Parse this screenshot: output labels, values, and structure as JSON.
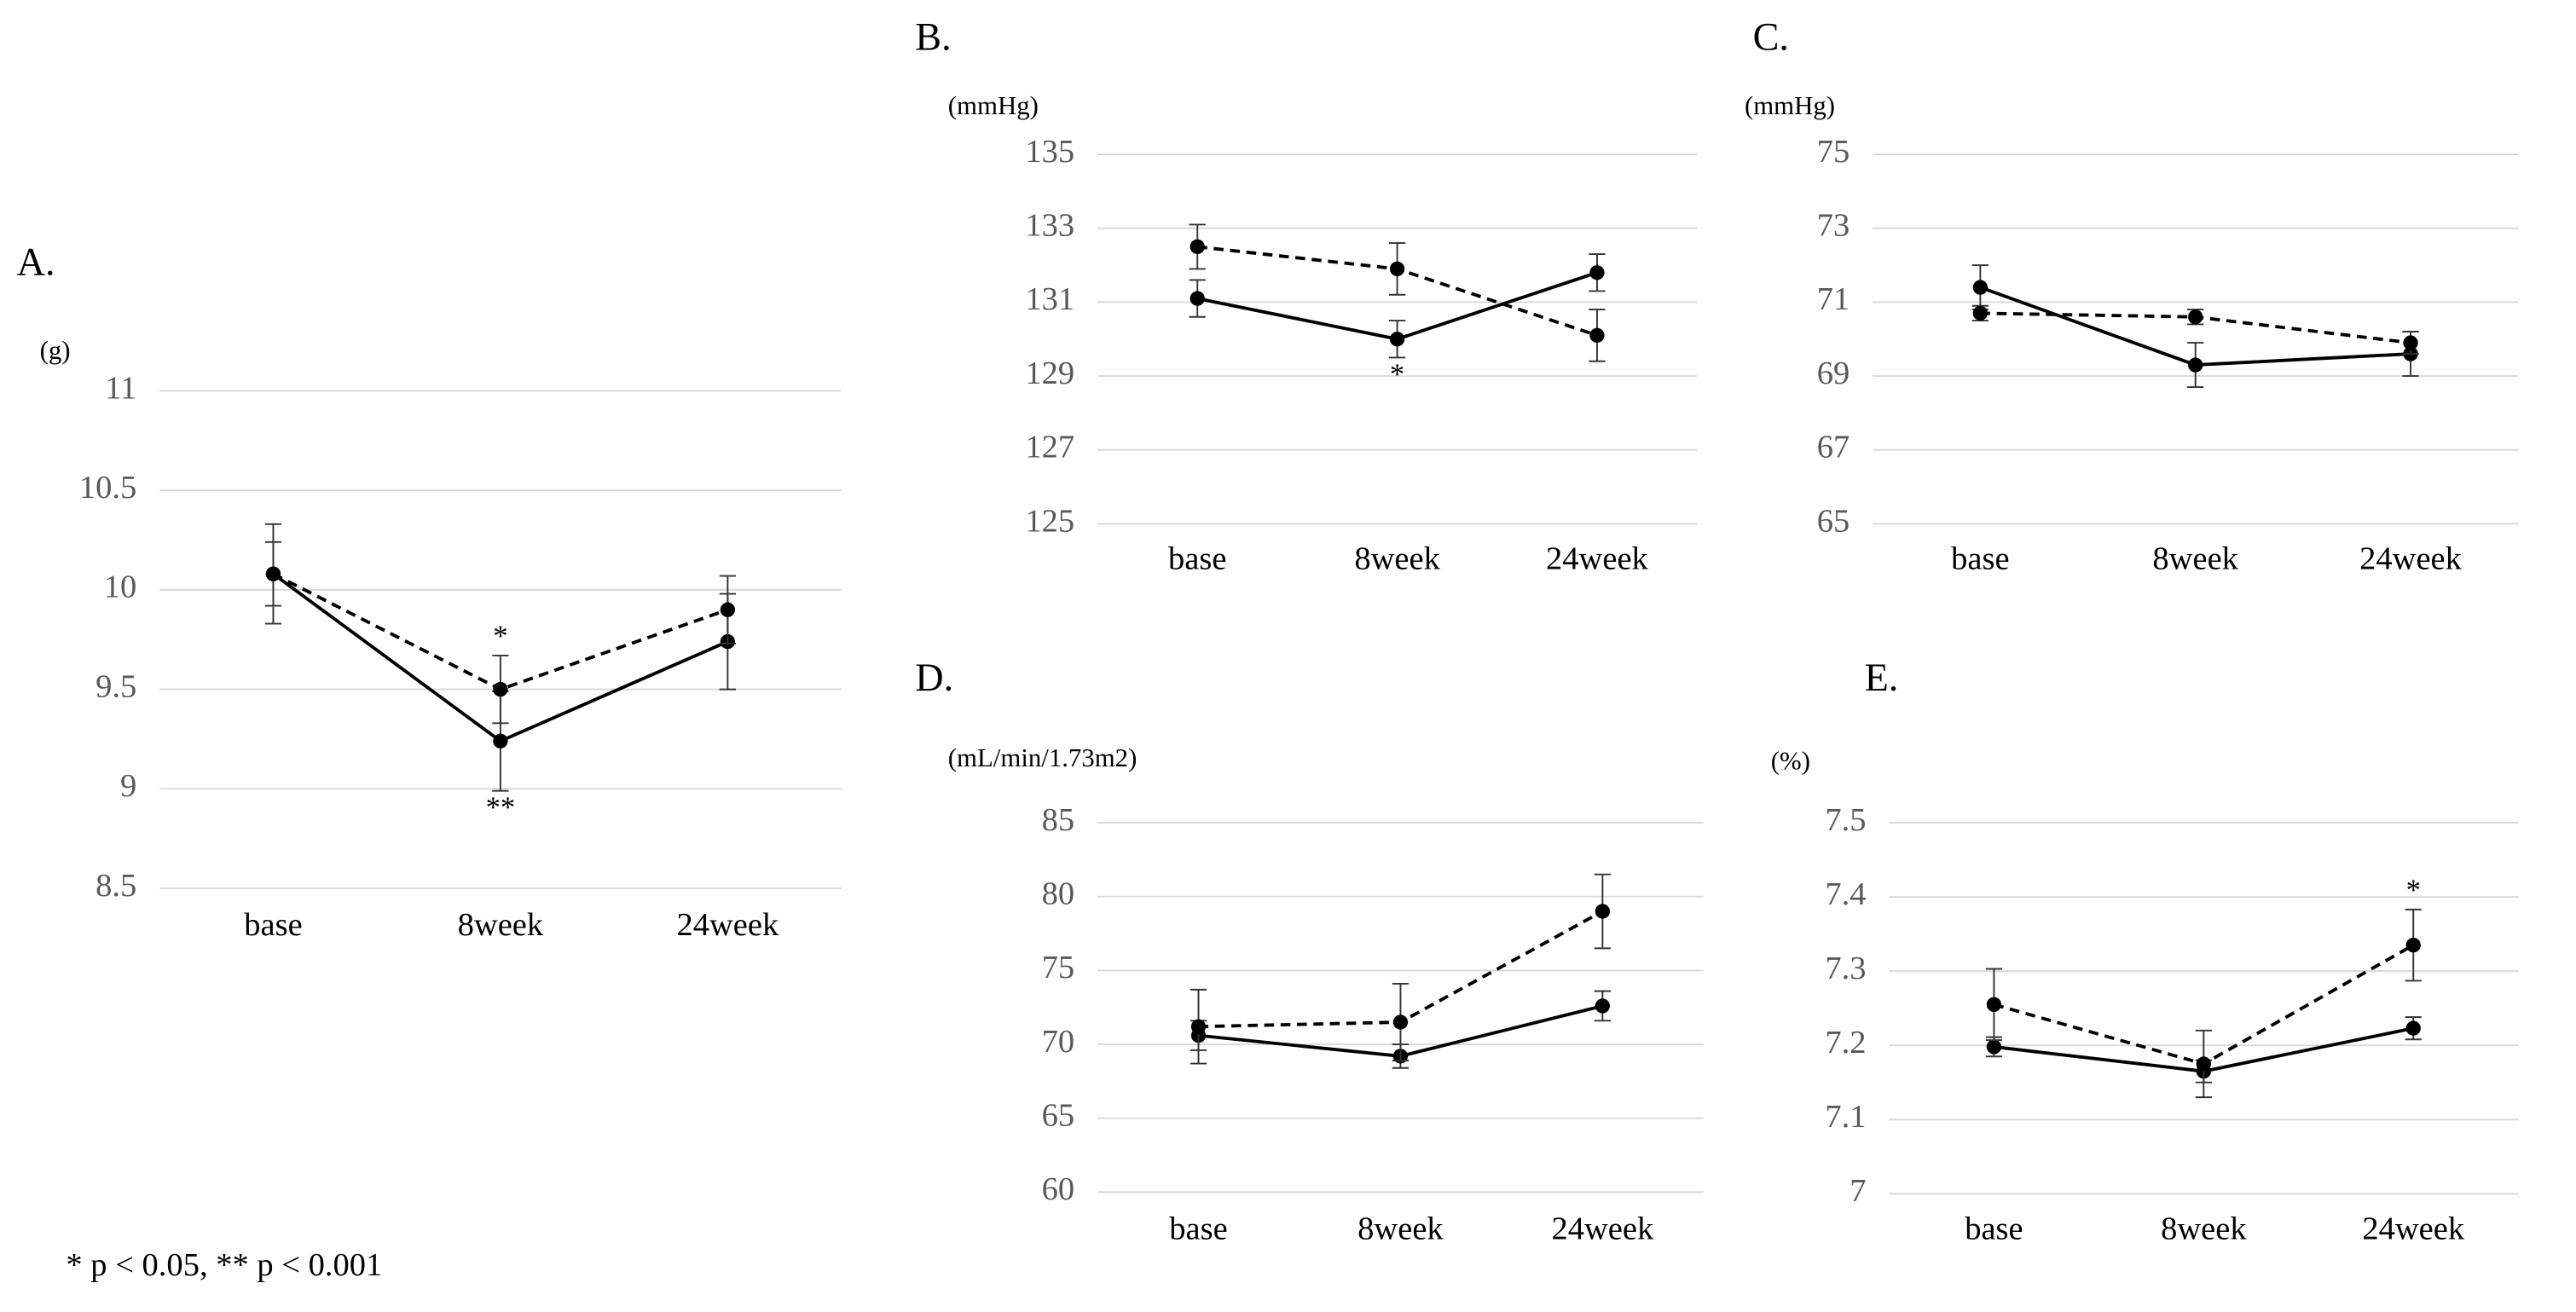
{
  "chart_data": [
    {
      "type": "line",
      "label": "A.",
      "y_label": "(g)",
      "categories": [
        "base",
        "8week",
        "24week"
      ],
      "ylim": [
        8.5,
        11
      ],
      "yticks": [
        8.5,
        9,
        9.5,
        10,
        10.5,
        11
      ],
      "grid": true,
      "series": [
        {
          "color": "#000000",
          "dash": "solid",
          "values": [
            10.08,
            9.24,
            9.74
          ],
          "errors": [
            0.16,
            0.25,
            0.24
          ],
          "marker_labels": [
            null,
            "**",
            null
          ]
        },
        {
          "color": "#000000",
          "dash": "dashed",
          "values": [
            10.08,
            9.5,
            9.9
          ],
          "errors": [
            0.25,
            0.17,
            0.17
          ],
          "marker_labels": [
            null,
            "*",
            null
          ]
        }
      ]
    },
    {
      "type": "line",
      "label": "B.",
      "y_label": "(mmHg)",
      "categories": [
        "base",
        "8week",
        "24week"
      ],
      "ylim": [
        125,
        135
      ],
      "yticks": [
        125,
        127,
        129,
        131,
        133,
        135
      ],
      "grid": true,
      "series": [
        {
          "color": "#000000",
          "dash": "solid",
          "values": [
            131.1,
            130.0,
            131.8
          ],
          "errors": [
            0.5,
            0.5,
            0.5
          ],
          "marker_labels": [
            null,
            "*",
            null
          ]
        },
        {
          "color": "#000000",
          "dash": "dashed",
          "values": [
            132.5,
            131.9,
            130.1
          ],
          "errors": [
            0.6,
            0.7,
            0.7
          ]
        }
      ]
    },
    {
      "type": "line",
      "label": "C.",
      "y_label": "(mmHg)",
      "categories": [
        "base",
        "8week",
        "24week"
      ],
      "ylim": [
        65,
        75
      ],
      "yticks": [
        65,
        67,
        69,
        71,
        73,
        75
      ],
      "grid": true,
      "series": [
        {
          "color": "#000000",
          "dash": "solid",
          "values": [
            71.4,
            69.3,
            69.6
          ],
          "errors": [
            0.6,
            0.6,
            0.6
          ]
        },
        {
          "color": "#000000",
          "dash": "dashed",
          "values": [
            70.7,
            70.6,
            69.9
          ],
          "errors": [
            0.2,
            0.2,
            0.3
          ]
        }
      ]
    },
    {
      "type": "line",
      "label": "D.",
      "y_label": "(mL/min/1.73m2)",
      "categories": [
        "base",
        "8week",
        "24week"
      ],
      "ylim": [
        60,
        85
      ],
      "yticks": [
        60,
        65,
        70,
        75,
        80,
        85
      ],
      "grid": true,
      "series": [
        {
          "color": "#000000",
          "dash": "solid",
          "values": [
            70.6,
            69.2,
            72.6
          ],
          "errors": [
            1.0,
            0.8,
            1.0
          ]
        },
        {
          "color": "#000000",
          "dash": "dashed",
          "values": [
            71.2,
            71.5,
            79.0
          ],
          "errors": [
            2.5,
            2.6,
            2.5
          ]
        }
      ]
    },
    {
      "type": "line",
      "label": "E.",
      "y_label": "(%)",
      "categories": [
        "base",
        "8week",
        "24week"
      ],
      "ylim": [
        7,
        7.5
      ],
      "yticks": [
        7,
        7.1,
        7.2,
        7.3,
        7.4,
        7.5
      ],
      "grid": true,
      "series": [
        {
          "color": "#000000",
          "dash": "solid",
          "values": [
            7.198,
            7.165,
            7.223
          ],
          "errors": [
            0.013,
            0.015,
            0.015
          ]
        },
        {
          "color": "#000000",
          "dash": "dashed",
          "values": [
            7.255,
            7.175,
            7.335
          ],
          "errors": [
            0.048,
            0.045,
            0.048
          ],
          "marker_labels": [
            null,
            null,
            "*"
          ]
        }
      ]
    }
  ],
  "footnote": "* p < 0.05,  ** p < 0.001"
}
